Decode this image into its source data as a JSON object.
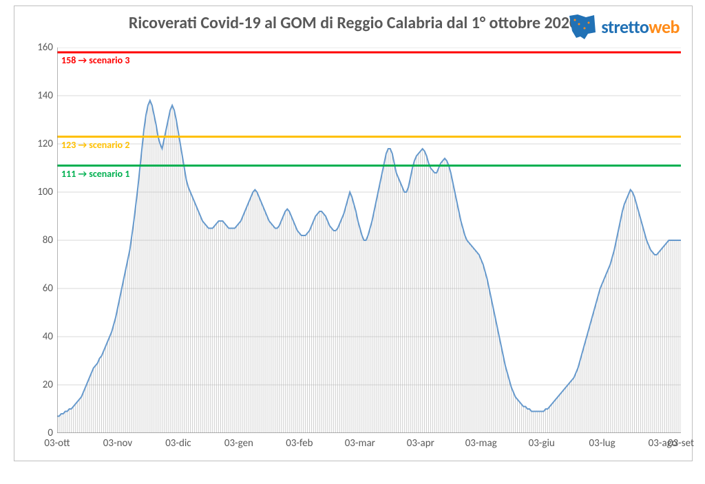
{
  "title": "Ricoverati Covid-19 al GOM di Reggio Calabria dal 1° ottobre 2020",
  "logo": {
    "text1": "stretto",
    "text2": "web"
  },
  "chart": {
    "type": "area+bar",
    "background": "#ffffff",
    "plot_border_color": "#bfbfbf",
    "y": {
      "min": 0,
      "max": 160,
      "step": 20,
      "grid_color": "#d9d9d9",
      "axis_color": "#808080",
      "label_fontsize": 15,
      "label_color": "#595959"
    },
    "x": {
      "labels": [
        "03-ott",
        "03-nov",
        "03-dic",
        "03-gen",
        "03-feb",
        "03-mar",
        "03-apr",
        "03-mag",
        "03-giu",
        "03-lug",
        "03-ago",
        "03-set"
      ],
      "label_fontsize": 15,
      "label_color": "#595959",
      "ticks_per_month": 30
    },
    "thresholds": [
      {
        "value": 158,
        "color": "#ff0000",
        "width": 3,
        "label": "158 → scenario 3",
        "label_color": "#ff0000"
      },
      {
        "value": 123,
        "color": "#ffc000",
        "width": 3,
        "label": "123 → scenario 2",
        "label_color": "#ffc000"
      },
      {
        "value": 111,
        "color": "#00b050",
        "width": 3,
        "label": "111 → scenario 1",
        "label_color": "#00b050"
      }
    ],
    "series": {
      "line_color": "#6699cc",
      "line_width": 2,
      "bar_color": "#a6a6a6",
      "bar_width": 1,
      "values": [
        7,
        7,
        8,
        8,
        9,
        9,
        10,
        10,
        11,
        12,
        13,
        14,
        15,
        17,
        19,
        21,
        23,
        25,
        27,
        28,
        29,
        31,
        32,
        34,
        36,
        38,
        40,
        42,
        45,
        48,
        52,
        56,
        60,
        64,
        68,
        72,
        76,
        82,
        88,
        95,
        102,
        110,
        118,
        126,
        132,
        136,
        138,
        136,
        132,
        128,
        123,
        120,
        118,
        122,
        126,
        130,
        134,
        136,
        134,
        130,
        125,
        120,
        115,
        110,
        105,
        102,
        100,
        98,
        96,
        94,
        92,
        90,
        88,
        87,
        86,
        85,
        85,
        85,
        86,
        87,
        88,
        88,
        88,
        87,
        86,
        85,
        85,
        85,
        85,
        86,
        87,
        88,
        90,
        92,
        94,
        96,
        98,
        100,
        101,
        100,
        98,
        96,
        94,
        92,
        90,
        88,
        87,
        86,
        85,
        85,
        86,
        88,
        90,
        92,
        93,
        92,
        90,
        88,
        86,
        84,
        83,
        82,
        82,
        82,
        83,
        84,
        86,
        88,
        90,
        91,
        92,
        92,
        91,
        90,
        88,
        86,
        85,
        84,
        84,
        85,
        87,
        89,
        91,
        94,
        97,
        100,
        98,
        95,
        92,
        88,
        85,
        82,
        80,
        80,
        82,
        85,
        88,
        92,
        96,
        100,
        104,
        108,
        112,
        116,
        118,
        118,
        116,
        112,
        108,
        106,
        104,
        102,
        100,
        100,
        102,
        106,
        110,
        113,
        115,
        116,
        117,
        118,
        117,
        115,
        112,
        110,
        109,
        108,
        108,
        110,
        112,
        113,
        114,
        113,
        111,
        108,
        104,
        100,
        96,
        92,
        88,
        85,
        82,
        80,
        79,
        78,
        77,
        76,
        75,
        74,
        72,
        70,
        67,
        64,
        60,
        56,
        52,
        48,
        44,
        40,
        36,
        32,
        28,
        25,
        22,
        19,
        17,
        15,
        14,
        13,
        12,
        11,
        11,
        10,
        10,
        9,
        9,
        9,
        9,
        9,
        9,
        9,
        10,
        10,
        11,
        12,
        13,
        14,
        15,
        16,
        17,
        18,
        19,
        20,
        21,
        22,
        23,
        25,
        27,
        30,
        33,
        36,
        39,
        42,
        45,
        48,
        51,
        54,
        57,
        60,
        62,
        64,
        66,
        68,
        70,
        73,
        76,
        80,
        84,
        88,
        92,
        95,
        97,
        99,
        101,
        100,
        98,
        95,
        92,
        89,
        86,
        83,
        80,
        78,
        76,
        75,
        74,
        74,
        75,
        76,
        77,
        78,
        79,
        80,
        80,
        80,
        80,
        80,
        80,
        80
      ]
    }
  }
}
